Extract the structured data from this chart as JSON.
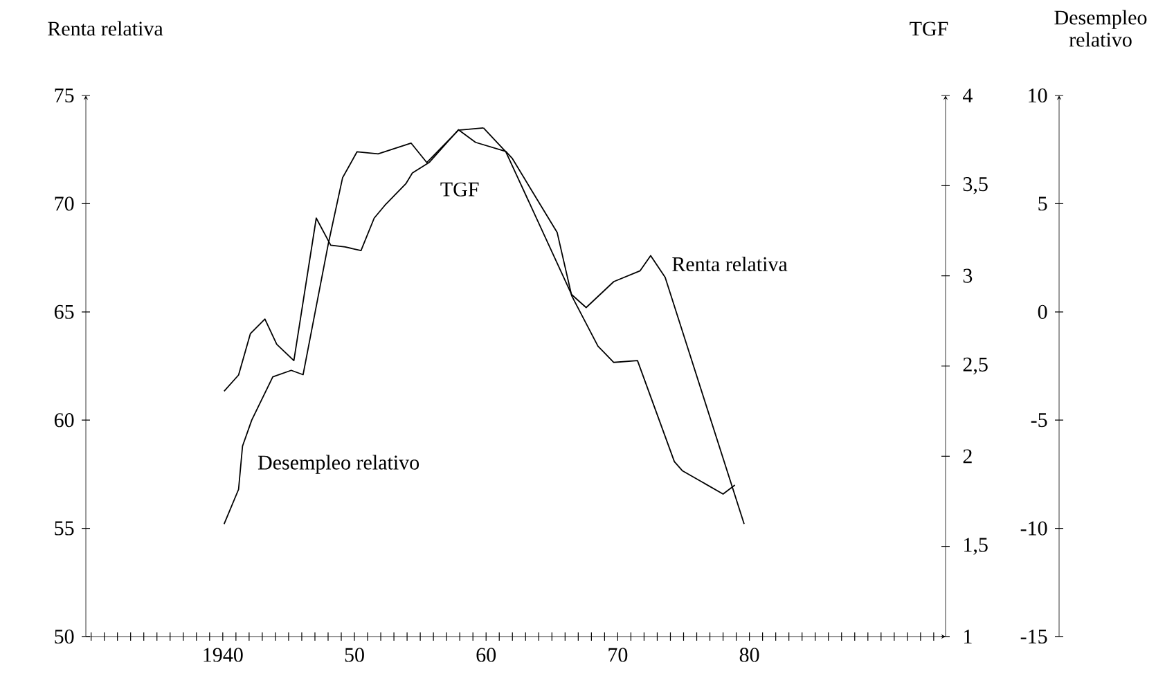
{
  "chart_data": {
    "type": "line",
    "ylabel": "Renta relativa",
    "y2label": "TGF",
    "y3label": "Desempleo relativo",
    "xlim": [
      1929.6,
      1994.9
    ],
    "xticks": [
      {
        "value": 1930,
        "label": null
      },
      {
        "value": 1931,
        "label": null
      },
      {
        "value": 1932,
        "label": null
      },
      {
        "value": 1933,
        "label": null
      },
      {
        "value": 1934,
        "label": null
      },
      {
        "value": 1935,
        "label": null
      },
      {
        "value": 1936,
        "label": null
      },
      {
        "value": 1937,
        "label": null
      },
      {
        "value": 1938,
        "label": null
      },
      {
        "value": 1939,
        "label": null
      },
      1940,
      {
        "value": 1941,
        "label": null
      },
      {
        "value": 1942,
        "label": null
      },
      {
        "value": 1943,
        "label": null
      },
      {
        "value": 1944,
        "label": null
      },
      {
        "value": 1945,
        "label": null
      },
      {
        "value": 1946,
        "label": null
      },
      {
        "value": 1947,
        "label": null
      },
      {
        "value": 1948,
        "label": null
      },
      {
        "value": 1949,
        "label": null
      },
      {
        "value": 1950,
        "label": "50"
      },
      {
        "value": 1951,
        "label": null
      },
      {
        "value": 1952,
        "label": null
      },
      {
        "value": 1953,
        "label": null
      },
      {
        "value": 1954,
        "label": null
      },
      {
        "value": 1955,
        "label": null
      },
      {
        "value": 1956,
        "label": null
      },
      {
        "value": 1957,
        "label": null
      },
      {
        "value": 1958,
        "label": null
      },
      {
        "value": 1959,
        "label": null
      },
      {
        "value": 1960,
        "label": "60"
      },
      {
        "value": 1961,
        "label": null
      },
      {
        "value": 1962,
        "label": null
      },
      {
        "value": 1963,
        "label": null
      },
      {
        "value": 1964,
        "label": null
      },
      {
        "value": 1965,
        "label": null
      },
      {
        "value": 1966,
        "label": null
      },
      {
        "value": 1967,
        "label": null
      },
      {
        "value": 1968,
        "label": null
      },
      {
        "value": 1969,
        "label": null
      },
      {
        "value": 1970,
        "label": "70"
      },
      {
        "value": 1971,
        "label": null
      },
      {
        "value": 1972,
        "label": null
      },
      {
        "value": 1973,
        "label": null
      },
      {
        "value": 1974,
        "label": null
      },
      {
        "value": 1975,
        "label": null
      },
      {
        "value": 1976,
        "label": null
      },
      {
        "value": 1977,
        "label": null
      },
      {
        "value": 1978,
        "label": null
      },
      {
        "value": 1979,
        "label": null
      },
      {
        "value": 1980,
        "label": "80"
      },
      {
        "value": 1981,
        "label": null
      },
      {
        "value": 1982,
        "label": null
      },
      {
        "value": 1983,
        "label": null
      },
      {
        "value": 1984,
        "label": null
      },
      {
        "value": 1985,
        "label": null
      },
      {
        "value": 1986,
        "label": null
      },
      {
        "value": 1987,
        "label": null
      },
      {
        "value": 1988,
        "label": null
      },
      {
        "value": 1989,
        "label": null
      },
      {
        "value": 1990,
        "label": null
      },
      {
        "value": 1991,
        "label": null
      },
      {
        "value": 1992,
        "label": null
      },
      {
        "value": 1993,
        "label": null
      },
      {
        "value": 1994,
        "label": null
      }
    ],
    "ylim": [
      50,
      75
    ],
    "yticks": [
      50,
      55,
      60,
      65,
      70,
      75
    ],
    "y2lim": [
      1,
      4
    ],
    "y2ticks": [
      1,
      {
        "value": 1.5,
        "label": "1,5"
      },
      2,
      {
        "value": 2.5,
        "label": "2,5"
      },
      3,
      {
        "value": 3.5,
        "label": "3,5"
      },
      4
    ],
    "y3lim": [
      -15,
      10
    ],
    "y3ticks": [
      -15,
      -10,
      -5,
      0,
      5,
      10
    ],
    "marker": "none",
    "line_style": "solid",
    "series": [
      {
        "name": "Renta relativa",
        "color": "#000000",
        "x": [
          1959.8,
          1961.5,
          1966.5,
          1967.6,
          1969.7,
          1971.7,
          1972.5,
          1973.6,
          1979.6
        ],
        "values": [
          73.5,
          72.4,
          65.8,
          65.2,
          66.4,
          66.9,
          67.6,
          66.6,
          55.2
        ]
      },
      {
        "name": "TGF",
        "color": "#000000",
        "axis": "y2",
        "x": [
          1940.1,
          1941.2,
          1942.1,
          1943.2,
          1944.1,
          1945.4,
          1947.1,
          1948.2,
          1949.3,
          1950.5,
          1951.5,
          1952.3,
          1953.9,
          1954.4,
          1955.7,
          1957.9,
          1959.2,
          1961.5,
          1962.0,
          1965.4,
          1966.5,
          1968.5,
          1969.7,
          1971.5,
          1974.3,
          1974.9,
          1978.0,
          1978.9
        ],
        "values": [
          2.36,
          2.45,
          2.68,
          2.76,
          2.62,
          2.53,
          3.32,
          3.17,
          3.16,
          3.14,
          3.32,
          3.39,
          3.51,
          3.57,
          3.63,
          3.81,
          3.74,
          3.69,
          3.65,
          3.24,
          2.89,
          2.61,
          2.52,
          2.53,
          1.97,
          1.92,
          1.79,
          1.84
        ]
      },
      {
        "name": "Desempleo relativo",
        "color": "#000000",
        "axis": "y3",
        "x": [
          1940.1,
          1941.2,
          1941.5,
          1942.2,
          1943.8,
          1945.2,
          1946.1,
          1948.0,
          1949.1,
          1950.2,
          1951.8,
          1954.3,
          1955.5,
          1957.9,
          1959.8
        ],
        "values": [
          -9.8,
          -8.2,
          -6.2,
          -5.0,
          -3.0,
          -2.7,
          -2.9,
          3.1,
          6.2,
          7.4,
          7.3,
          7.8,
          6.9,
          8.4,
          8.5
        ]
      }
    ]
  }
}
